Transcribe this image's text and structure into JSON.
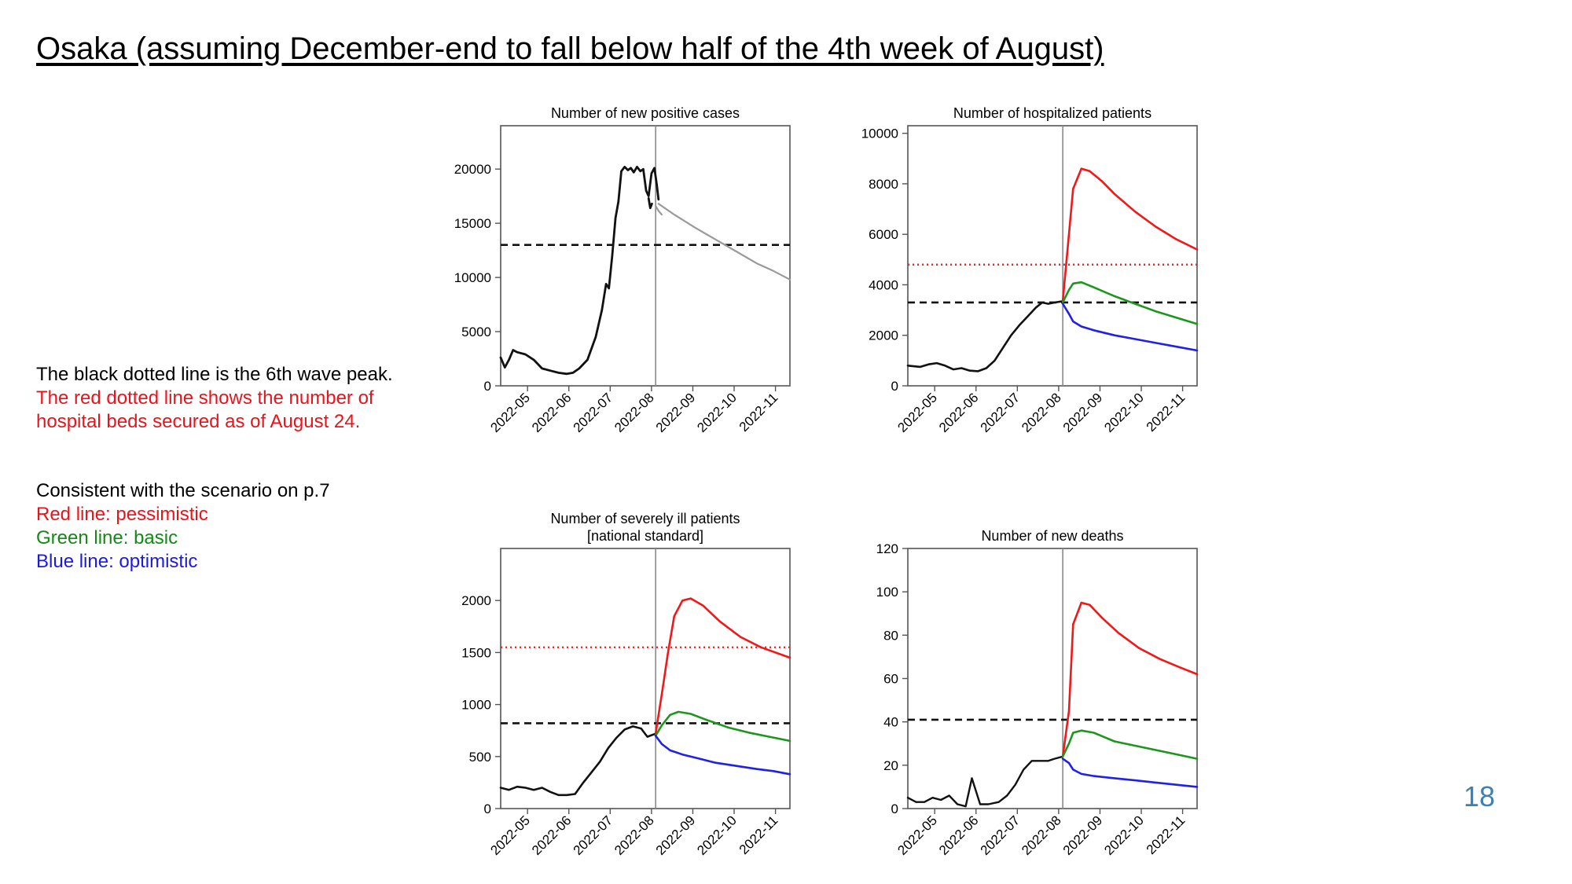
{
  "title": "Osaka (assuming December-end to fall below half of the 4th week of August)",
  "notes": {
    "black_line": "The black dotted line is the 6th wave peak.",
    "red_line_1": "The red dotted line shows the number of",
    "red_line_2": "hospital beds secured as of August 24."
  },
  "legend": {
    "heading": "Consistent with the scenario on p.7",
    "items": [
      {
        "label": "Red line: pessimistic",
        "color": "#e8141c"
      },
      {
        "label": "Green line: basic",
        "color": "#138a13"
      },
      {
        "label": "Blue line: optimistic",
        "color": "#1a1ae0"
      }
    ]
  },
  "page_number": "18",
  "colors": {
    "actual": "#111111",
    "projection_single": "#9a9a9a",
    "pessimistic": "#f01818",
    "basic": "#1c961c",
    "optimistic": "#2020e6",
    "sixth_wave_peak": "#111111",
    "beds_secured": "#f02828",
    "divider": "#8a8a8a"
  },
  "chart_data": [
    {
      "type": "line",
      "title_lines": [
        "Number of new positive cases"
      ],
      "x_ticks": [
        "2022-05",
        "2022-06",
        "2022-07",
        "2022-08",
        "2022-09",
        "2022-10",
        "2022-11"
      ],
      "y_ticks": [
        0,
        5000,
        10000,
        15000,
        20000
      ],
      "ylim": [
        0,
        24000
      ],
      "xlim": [
        0,
        7.0
      ],
      "divider_x": 3.75,
      "reference_lines": [
        {
          "name": "6th wave peak",
          "y": 13000,
          "style": "dashed",
          "color_key": "sixth_wave_peak"
        }
      ],
      "series": [
        {
          "color_key": "actual",
          "width": 2.8,
          "points": [
            [
              0,
              2600
            ],
            [
              0.1,
              1700
            ],
            [
              0.2,
              2400
            ],
            [
              0.3,
              3300
            ],
            [
              0.4,
              3100
            ],
            [
              0.6,
              2900
            ],
            [
              0.8,
              2400
            ],
            [
              1.0,
              1600
            ],
            [
              1.2,
              1400
            ],
            [
              1.4,
              1200
            ],
            [
              1.6,
              1100
            ],
            [
              1.75,
              1200
            ],
            [
              1.9,
              1600
            ],
            [
              2.1,
              2400
            ],
            [
              2.3,
              4500
            ],
            [
              2.45,
              7000
            ],
            [
              2.55,
              9400
            ],
            [
              2.62,
              9000
            ],
            [
              2.7,
              12000
            ],
            [
              2.78,
              15500
            ],
            [
              2.85,
              17000
            ],
            [
              2.92,
              19800
            ],
            [
              3.0,
              20200
            ],
            [
              3.08,
              19900
            ],
            [
              3.15,
              20100
            ],
            [
              3.22,
              19700
            ],
            [
              3.3,
              20200
            ],
            [
              3.38,
              19800
            ],
            [
              3.45,
              20000
            ],
            [
              3.52,
              18000
            ],
            [
              3.58,
              17500
            ],
            [
              3.65,
              19600
            ],
            [
              3.72,
              20100
            ],
            [
              3.78,
              18500
            ],
            [
              3.82,
              17200
            ]
          ]
        },
        {
          "color_key": "actual",
          "width": 2.8,
          "points": [
            [
              3.58,
              17300
            ],
            [
              3.62,
              16400
            ],
            [
              3.66,
              16800
            ]
          ]
        },
        {
          "color_key": "projection_single",
          "width": 2.2,
          "points": [
            [
              3.75,
              16600
            ],
            [
              3.83,
              16100
            ],
            [
              3.9,
              15800
            ]
          ]
        },
        {
          "color_key": "projection_single",
          "width": 2.2,
          "points": [
            [
              3.82,
              16800
            ],
            [
              4.2,
              15800
            ],
            [
              4.7,
              14600
            ],
            [
              5.2,
              13500
            ],
            [
              5.7,
              12400
            ],
            [
              6.2,
              11300
            ],
            [
              6.6,
              10600
            ],
            [
              7.0,
              9800
            ]
          ]
        }
      ]
    },
    {
      "type": "line",
      "title_lines": [
        "Number of hospitalized patients"
      ],
      "x_ticks": [
        "2022-05",
        "2022-06",
        "2022-07",
        "2022-08",
        "2022-09",
        "2022-10",
        "2022-11"
      ],
      "y_ticks": [
        0,
        2000,
        4000,
        6000,
        8000,
        10000
      ],
      "ylim": [
        0,
        10300
      ],
      "xlim": [
        0,
        7.0
      ],
      "divider_x": 3.75,
      "reference_lines": [
        {
          "name": "beds secured",
          "y": 4800,
          "style": "dotted",
          "color_key": "beds_secured"
        },
        {
          "name": "6th wave peak",
          "y": 3300,
          "style": "dashed",
          "color_key": "sixth_wave_peak"
        }
      ],
      "series": [
        {
          "color_key": "actual",
          "width": 2.6,
          "points": [
            [
              0,
              800
            ],
            [
              0.3,
              750
            ],
            [
              0.5,
              850
            ],
            [
              0.7,
              900
            ],
            [
              0.9,
              800
            ],
            [
              1.1,
              650
            ],
            [
              1.3,
              700
            ],
            [
              1.5,
              600
            ],
            [
              1.7,
              580
            ],
            [
              1.9,
              700
            ],
            [
              2.1,
              1000
            ],
            [
              2.3,
              1500
            ],
            [
              2.5,
              2000
            ],
            [
              2.7,
              2400
            ],
            [
              2.9,
              2750
            ],
            [
              3.1,
              3100
            ],
            [
              3.25,
              3300
            ],
            [
              3.4,
              3250
            ],
            [
              3.55,
              3300
            ],
            [
              3.75,
              3350
            ]
          ]
        },
        {
          "name": "pessimistic",
          "color_key": "pessimistic",
          "width": 2.6,
          "points": [
            [
              3.75,
              3350
            ],
            [
              3.87,
              5500
            ],
            [
              4.0,
              7800
            ],
            [
              4.2,
              8600
            ],
            [
              4.4,
              8500
            ],
            [
              4.7,
              8100
            ],
            [
              5.0,
              7600
            ],
            [
              5.5,
              6900
            ],
            [
              6.0,
              6300
            ],
            [
              6.5,
              5800
            ],
            [
              7.0,
              5400
            ]
          ]
        },
        {
          "name": "basic",
          "color_key": "basic",
          "width": 2.6,
          "points": [
            [
              3.75,
              3300
            ],
            [
              3.9,
              3800
            ],
            [
              4.0,
              4050
            ],
            [
              4.2,
              4100
            ],
            [
              4.5,
              3900
            ],
            [
              5.0,
              3550
            ],
            [
              5.5,
              3250
            ],
            [
              6.0,
              2950
            ],
            [
              6.5,
              2700
            ],
            [
              7.0,
              2450
            ]
          ]
        },
        {
          "name": "optimistic",
          "color_key": "optimistic",
          "width": 2.6,
          "points": [
            [
              3.75,
              3250
            ],
            [
              3.9,
              2850
            ],
            [
              4.0,
              2550
            ],
            [
              4.2,
              2350
            ],
            [
              4.5,
              2200
            ],
            [
              5.0,
              2000
            ],
            [
              5.5,
              1850
            ],
            [
              6.0,
              1700
            ],
            [
              6.5,
              1550
            ],
            [
              7.0,
              1400
            ]
          ]
        }
      ]
    },
    {
      "type": "line",
      "title_lines": [
        "Number of severely ill patients",
        "[national standard]"
      ],
      "x_ticks": [
        "2022-05",
        "2022-06",
        "2022-07",
        "2022-08",
        "2022-09",
        "2022-10",
        "2022-11"
      ],
      "y_ticks": [
        0,
        500,
        1000,
        1500,
        2000
      ],
      "ylim": [
        0,
        2500
      ],
      "xlim": [
        0,
        7.0
      ],
      "divider_x": 3.75,
      "reference_lines": [
        {
          "name": "beds secured",
          "y": 1550,
          "style": "dotted",
          "color_key": "beds_secured"
        },
        {
          "name": "6th wave peak",
          "y": 820,
          "style": "dashed",
          "color_key": "sixth_wave_peak"
        }
      ],
      "series": [
        {
          "color_key": "actual",
          "width": 2.6,
          "points": [
            [
              0,
              200
            ],
            [
              0.2,
              180
            ],
            [
              0.4,
              210
            ],
            [
              0.6,
              200
            ],
            [
              0.8,
              180
            ],
            [
              1.0,
              200
            ],
            [
              1.2,
              160
            ],
            [
              1.4,
              130
            ],
            [
              1.6,
              130
            ],
            [
              1.8,
              140
            ],
            [
              2.0,
              250
            ],
            [
              2.2,
              350
            ],
            [
              2.4,
              450
            ],
            [
              2.6,
              580
            ],
            [
              2.8,
              680
            ],
            [
              3.0,
              760
            ],
            [
              3.2,
              790
            ],
            [
              3.4,
              770
            ],
            [
              3.55,
              690
            ],
            [
              3.75,
              720
            ]
          ]
        },
        {
          "name": "pessimistic",
          "color_key": "pessimistic",
          "width": 2.6,
          "points": [
            [
              3.75,
              720
            ],
            [
              3.9,
              1100
            ],
            [
              4.05,
              1500
            ],
            [
              4.2,
              1850
            ],
            [
              4.4,
              2000
            ],
            [
              4.6,
              2020
            ],
            [
              4.9,
              1950
            ],
            [
              5.3,
              1800
            ],
            [
              5.8,
              1650
            ],
            [
              6.3,
              1550
            ],
            [
              7.0,
              1450
            ]
          ]
        },
        {
          "name": "basic",
          "color_key": "basic",
          "width": 2.6,
          "points": [
            [
              3.75,
              700
            ],
            [
              3.9,
              800
            ],
            [
              4.1,
              900
            ],
            [
              4.3,
              930
            ],
            [
              4.6,
              910
            ],
            [
              5.0,
              850
            ],
            [
              5.5,
              780
            ],
            [
              6.0,
              730
            ],
            [
              6.5,
              690
            ],
            [
              7.0,
              650
            ]
          ]
        },
        {
          "name": "optimistic",
          "color_key": "optimistic",
          "width": 2.6,
          "points": [
            [
              3.75,
              700
            ],
            [
              3.9,
              620
            ],
            [
              4.1,
              560
            ],
            [
              4.4,
              520
            ],
            [
              4.8,
              480
            ],
            [
              5.2,
              440
            ],
            [
              5.7,
              410
            ],
            [
              6.2,
              380
            ],
            [
              6.6,
              360
            ],
            [
              7.0,
              330
            ]
          ]
        }
      ]
    },
    {
      "type": "line",
      "title_lines": [
        "Number of new deaths"
      ],
      "x_ticks": [
        "2022-05",
        "2022-06",
        "2022-07",
        "2022-08",
        "2022-09",
        "2022-10",
        "2022-11"
      ],
      "y_ticks": [
        0,
        20,
        40,
        60,
        80,
        100,
        120
      ],
      "ylim": [
        0,
        120
      ],
      "xlim": [
        0,
        7.0
      ],
      "divider_x": 3.75,
      "reference_lines": [
        {
          "name": "6th wave peak",
          "y": 41,
          "style": "dashed",
          "color_key": "sixth_wave_peak"
        }
      ],
      "series": [
        {
          "color_key": "actual",
          "width": 2.4,
          "points": [
            [
              0,
              5
            ],
            [
              0.2,
              3
            ],
            [
              0.4,
              3
            ],
            [
              0.6,
              5
            ],
            [
              0.8,
              4
            ],
            [
              1.0,
              6
            ],
            [
              1.2,
              2
            ],
            [
              1.4,
              1
            ],
            [
              1.55,
              14
            ],
            [
              1.75,
              2
            ],
            [
              1.95,
              2
            ],
            [
              2.2,
              3
            ],
            [
              2.4,
              6
            ],
            [
              2.6,
              11
            ],
            [
              2.8,
              18
            ],
            [
              3.0,
              22
            ],
            [
              3.2,
              22
            ],
            [
              3.4,
              22
            ],
            [
              3.55,
              23
            ],
            [
              3.75,
              24
            ]
          ]
        },
        {
          "name": "pessimistic",
          "color_key": "pessimistic",
          "width": 2.6,
          "points": [
            [
              3.75,
              24
            ],
            [
              3.9,
              45
            ],
            [
              4.0,
              85
            ],
            [
              4.2,
              95
            ],
            [
              4.4,
              94
            ],
            [
              4.7,
              88
            ],
            [
              5.1,
              81
            ],
            [
              5.6,
              74
            ],
            [
              6.1,
              69
            ],
            [
              6.6,
              65
            ],
            [
              7.0,
              62
            ]
          ]
        },
        {
          "name": "basic",
          "color_key": "basic",
          "width": 2.6,
          "points": [
            [
              3.75,
              24
            ],
            [
              3.9,
              30
            ],
            [
              4.0,
              35
            ],
            [
              4.2,
              36
            ],
            [
              4.5,
              35
            ],
            [
              5.0,
              31
            ],
            [
              5.5,
              29
            ],
            [
              6.0,
              27
            ],
            [
              6.5,
              25
            ],
            [
              7.0,
              23
            ]
          ]
        },
        {
          "name": "optimistic",
          "color_key": "optimistic",
          "width": 2.6,
          "points": [
            [
              3.75,
              23
            ],
            [
              3.9,
              21
            ],
            [
              4.0,
              18
            ],
            [
              4.2,
              16
            ],
            [
              4.5,
              15
            ],
            [
              5.0,
              14
            ],
            [
              5.5,
              13
            ],
            [
              6.0,
              12
            ],
            [
              6.5,
              11
            ],
            [
              7.0,
              10
            ]
          ]
        }
      ]
    }
  ]
}
